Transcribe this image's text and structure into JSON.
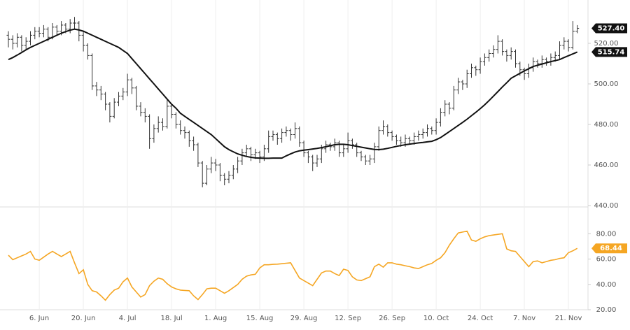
{
  "chart_data": {
    "type": "ohlc",
    "grid": "x",
    "categories": [
      null,
      null,
      null,
      null,
      null,
      null,
      null,
      "6. Jun",
      null,
      null,
      null,
      null,
      null,
      null,
      null,
      null,
      null,
      "20. Jun",
      null,
      null,
      null,
      null,
      null,
      null,
      null,
      null,
      null,
      "4. Jul",
      null,
      null,
      null,
      null,
      null,
      null,
      null,
      null,
      null,
      "18. Jul",
      null,
      null,
      null,
      null,
      null,
      null,
      null,
      null,
      null,
      "1. Aug",
      null,
      null,
      null,
      null,
      null,
      null,
      null,
      null,
      null,
      "15. Aug",
      null,
      null,
      null,
      null,
      null,
      null,
      null,
      null,
      null,
      "29. Aug",
      null,
      null,
      null,
      null,
      null,
      null,
      null,
      null,
      null,
      "12. Sep",
      null,
      null,
      null,
      null,
      null,
      null,
      null,
      null,
      null,
      "26. Sep",
      null,
      null,
      null,
      null,
      null,
      null,
      null,
      null,
      null,
      "10. Oct",
      null,
      null,
      null,
      null,
      null,
      null,
      null,
      null,
      null,
      "24. Oct",
      null,
      null,
      null,
      null,
      null,
      null,
      null,
      null,
      null,
      "7. Nov",
      null,
      null,
      null,
      null,
      null,
      null,
      null,
      null,
      null,
      "21. Nov",
      null,
      null
    ],
    "color": "#333333",
    "open": [
      524,
      522,
      520,
      523,
      519,
      521,
      524,
      526,
      525,
      527,
      523,
      528,
      526,
      529,
      527,
      530,
      530,
      524,
      519,
      514,
      499,
      497,
      495,
      490,
      484,
      491,
      494,
      496,
      502,
      498,
      489,
      486,
      484,
      473,
      478,
      481,
      479,
      489,
      485,
      480,
      477,
      476,
      472,
      470,
      461,
      451,
      458,
      461,
      460,
      455,
      453,
      455,
      458,
      462,
      466,
      468,
      465,
      466,
      464,
      468,
      474,
      475,
      473,
      476,
      477,
      475,
      478,
      471,
      466,
      464,
      461,
      463,
      468,
      470,
      469,
      471,
      466,
      468,
      472,
      470,
      466,
      464,
      462,
      463,
      469,
      477,
      479,
      476,
      474,
      472,
      471,
      473,
      472,
      474,
      475,
      476,
      478,
      477,
      481,
      486,
      490,
      488,
      497,
      501,
      500,
      505,
      508,
      507,
      511,
      513,
      515,
      517,
      521,
      516,
      514,
      516,
      510,
      507,
      505,
      508,
      511,
      510,
      512,
      511,
      513,
      514,
      519,
      521,
      518,
      526
    ],
    "high": [
      526,
      524,
      525,
      524,
      523,
      526,
      528,
      528,
      529,
      528,
      530,
      529,
      531,
      530,
      532,
      533,
      531,
      526,
      520,
      515,
      501,
      499,
      496,
      491,
      493,
      496,
      498,
      505,
      503,
      499,
      491,
      488,
      485,
      480,
      484,
      483,
      492,
      490,
      486,
      482,
      479,
      477,
      474,
      471,
      462,
      460,
      464,
      463,
      461,
      456,
      457,
      460,
      464,
      468,
      470,
      469,
      468,
      467,
      470,
      477,
      477,
      476,
      478,
      479,
      478,
      481,
      479,
      472,
      467,
      465,
      465,
      470,
      472,
      471,
      473,
      472,
      470,
      476,
      473,
      471,
      467,
      465,
      465,
      471,
      479,
      482,
      480,
      477,
      475,
      474,
      475,
      474,
      476,
      477,
      478,
      480,
      479,
      483,
      488,
      492,
      491,
      499,
      503,
      502,
      507,
      510,
      509,
      513,
      515,
      517,
      519,
      524,
      522,
      517,
      518,
      517,
      511,
      508,
      510,
      513,
      512,
      514,
      513,
      515,
      516,
      521,
      523,
      522,
      531,
      529
    ],
    "low": [
      518,
      517,
      518,
      516,
      517,
      519,
      522,
      523,
      523,
      521,
      522,
      524,
      524,
      525,
      525,
      527,
      521,
      516,
      512,
      497,
      494,
      492,
      487,
      481,
      483,
      489,
      492,
      494,
      495,
      487,
      484,
      481,
      468,
      471,
      476,
      477,
      478,
      483,
      478,
      475,
      473,
      469,
      467,
      459,
      449,
      450,
      456,
      457,
      452,
      450,
      451,
      453,
      456,
      460,
      464,
      462,
      463,
      461,
      462,
      466,
      472,
      470,
      471,
      474,
      472,
      473,
      469,
      464,
      461,
      457,
      459,
      461,
      466,
      467,
      467,
      464,
      464,
      466,
      468,
      464,
      462,
      460,
      460,
      461,
      467,
      475,
      474,
      472,
      470,
      469,
      469,
      470,
      470,
      472,
      473,
      474,
      475,
      475,
      479,
      484,
      485,
      487,
      495,
      497,
      498,
      503,
      504,
      505,
      509,
      511,
      513,
      515,
      514,
      511,
      512,
      508,
      504,
      502,
      503,
      506,
      508,
      508,
      509,
      509,
      511,
      512,
      517,
      516,
      517,
      525
    ],
    "close": [
      522,
      520,
      523,
      519,
      521,
      524,
      526,
      525,
      527,
      523,
      528,
      526,
      529,
      527,
      530,
      530,
      524,
      519,
      514,
      499,
      497,
      495,
      490,
      484,
      491,
      494,
      496,
      502,
      498,
      489,
      486,
      484,
      473,
      478,
      481,
      479,
      489,
      485,
      480,
      477,
      476,
      472,
      470,
      461,
      451,
      458,
      461,
      460,
      455,
      453,
      455,
      458,
      462,
      466,
      468,
      465,
      466,
      464,
      468,
      474,
      475,
      473,
      476,
      477,
      475,
      478,
      471,
      466,
      464,
      461,
      463,
      468,
      470,
      469,
      471,
      466,
      468,
      472,
      470,
      466,
      464,
      462,
      463,
      469,
      477,
      479,
      476,
      474,
      472,
      471,
      473,
      472,
      474,
      475,
      476,
      478,
      477,
      481,
      486,
      490,
      488,
      497,
      501,
      500,
      505,
      508,
      507,
      511,
      513,
      515,
      517,
      521,
      516,
      514,
      516,
      510,
      507,
      505,
      508,
      511,
      510,
      512,
      511,
      513,
      514,
      519,
      521,
      518,
      526,
      527.4
    ],
    "close_label": "527.40",
    "ma": {
      "color": "#111111",
      "value_label": "515.74",
      "values": [
        512,
        513,
        514.2,
        515.5,
        516.8,
        518,
        519,
        520,
        521,
        522,
        523,
        524,
        525,
        525.8,
        526.5,
        527,
        526.6,
        526,
        525,
        524,
        523,
        522,
        521,
        520,
        519,
        518,
        516.5,
        515,
        512.5,
        510,
        507.5,
        505,
        502.5,
        500,
        497.5,
        495,
        492.5,
        490,
        488,
        485.5,
        484,
        482.5,
        481,
        479.5,
        478,
        476.5,
        475,
        473,
        471,
        469,
        467.6,
        466.5,
        465.5,
        464.8,
        464.2,
        463.8,
        463.5,
        463.4,
        463.3,
        463.3,
        463.4,
        463.4,
        463.4,
        464.5,
        465.5,
        466.4,
        467,
        467.3,
        467.6,
        467.9,
        468.2,
        468.6,
        469,
        469.5,
        470,
        470.2,
        470.2,
        470,
        469.6,
        469.2,
        468.8,
        468.4,
        468,
        467.7,
        467.6,
        467.8,
        468.2,
        468.7,
        469.2,
        469.6,
        470,
        470.3,
        470.6,
        470.9,
        471.1,
        471.4,
        471.7,
        472.5,
        473.5,
        475,
        476.5,
        478,
        479.5,
        481,
        482.6,
        484.3,
        486,
        487.8,
        489.7,
        491.8,
        494,
        496.2,
        498.5,
        500.6,
        502.8,
        504,
        505.2,
        506.4,
        507.5,
        508.6,
        509.2,
        509.8,
        510.4,
        511,
        511.5,
        512,
        513,
        513.9,
        514.8,
        515.74
      ]
    },
    "ylim": [
      440,
      540
    ],
    "yticks": [
      {
        "value": 440,
        "label": "440.00"
      },
      {
        "value": 460,
        "label": "460.00"
      },
      {
        "value": 480,
        "label": "480.00"
      },
      {
        "value": 500,
        "label": "500.00"
      },
      {
        "value": 520,
        "label": "520.00"
      }
    ],
    "indicator": {
      "color": "#f5a623",
      "value_label": "68.44",
      "ylim": [
        20,
        100
      ],
      "yticks": [
        {
          "value": 20,
          "label": "20.00"
        },
        {
          "value": 40,
          "label": "40.00"
        },
        {
          "value": 60,
          "label": "60.00"
        },
        {
          "value": 80,
          "label": "80.00"
        }
      ],
      "values": [
        63,
        59.5,
        61,
        62.5,
        64,
        66,
        60,
        59,
        61.5,
        64,
        66,
        64,
        62,
        64,
        66,
        57,
        48.5,
        51.5,
        40,
        35,
        34,
        31,
        27.5,
        32,
        35.5,
        37,
        42,
        45,
        38,
        34,
        30,
        32,
        39,
        42.5,
        45,
        44,
        40.5,
        38,
        36.5,
        35.5,
        35.2,
        35,
        31,
        28,
        32,
        36.5,
        37,
        37,
        35,
        33,
        35,
        37.5,
        40,
        44,
        46.5,
        47.5,
        48,
        53,
        55.5,
        55.5,
        55.8,
        56,
        56.3,
        56.7,
        57,
        51,
        45,
        43,
        41,
        39,
        44,
        49,
        50.5,
        50.5,
        48.5,
        47,
        52,
        51,
        46,
        43.5,
        43,
        44.5,
        46,
        54,
        56,
        53.6,
        57,
        57,
        56,
        55.5,
        54.7,
        54,
        53,
        52.5,
        54,
        55.5,
        56.5,
        59,
        61,
        65,
        71,
        76,
        80.6,
        81.3,
        82,
        75,
        74,
        76,
        77.5,
        78.5,
        79,
        79.5,
        80,
        68,
        66.5,
        66,
        62,
        58,
        54,
        58,
        58.5,
        57,
        58,
        59,
        59.5,
        60.5,
        61,
        65,
        66.5,
        68.44
      ]
    }
  }
}
